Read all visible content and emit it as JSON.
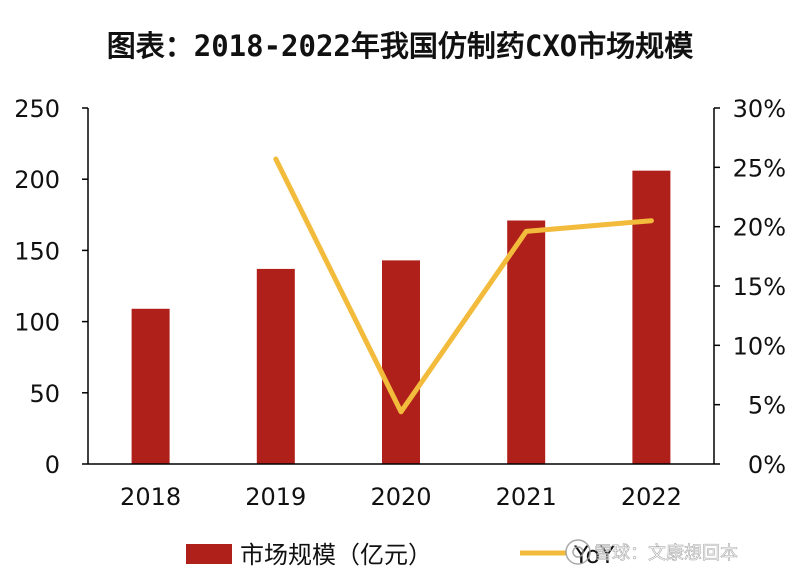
{
  "chart_data": {
    "type": "bar",
    "title": "图表：2018-2022年我国仿制药CXO市场规模",
    "categories": [
      "2018",
      "2019",
      "2020",
      "2021",
      "2022"
    ],
    "series": [
      {
        "name": "市场规模（亿元）",
        "type": "bar",
        "axis": "left",
        "color": "#b0201a",
        "values": [
          109,
          137,
          143,
          171,
          206
        ]
      },
      {
        "name": "YoY",
        "type": "line",
        "axis": "right",
        "color": "#f2bb3c",
        "values": [
          null,
          25.7,
          4.4,
          19.6,
          20.5
        ]
      }
    ],
    "y_left": {
      "min": 0,
      "max": 250,
      "ticks": [
        "0",
        "50",
        "100",
        "150",
        "200",
        "250"
      ]
    },
    "y_right": {
      "min": 0,
      "max": 30,
      "ticks": [
        "0%",
        "5%",
        "10%",
        "15%",
        "20%",
        "25%",
        "30%"
      ]
    },
    "legend": "bottom",
    "grid": false
  },
  "watermark": {
    "text": "雪球：文康想回本",
    "icon": "snowball-logo-icon"
  }
}
